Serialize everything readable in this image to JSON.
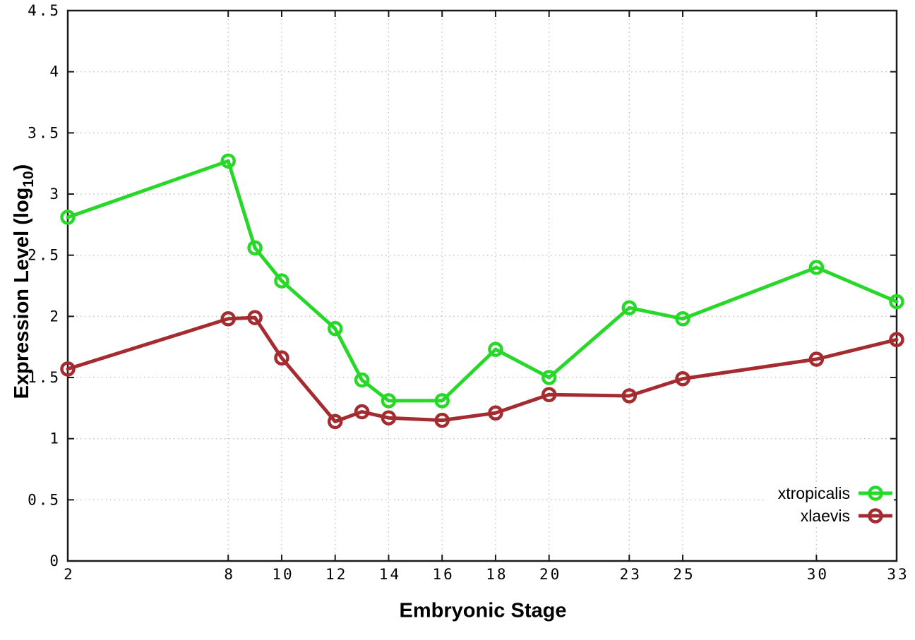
{
  "chart_data": {
    "type": "line",
    "title": "",
    "xlabel": "Embryonic Stage",
    "ylabel": "Expression Level (log10)",
    "ylabel_parts": {
      "main": "Expression Level (log",
      "sub": "10",
      "end": ")"
    },
    "x": [
      2,
      8,
      9,
      10,
      12,
      13,
      14,
      16,
      18,
      20,
      23,
      25,
      30,
      33
    ],
    "series": [
      {
        "name": "xtropicalis",
        "color": "#28d828",
        "values": [
          2.81,
          3.27,
          2.56,
          2.29,
          1.9,
          1.48,
          1.31,
          1.31,
          1.73,
          1.5,
          2.07,
          1.98,
          2.4,
          2.12
        ]
      },
      {
        "name": "xlaevis",
        "color": "#a42c30",
        "values": [
          1.57,
          1.98,
          1.99,
          1.66,
          1.14,
          1.22,
          1.17,
          1.15,
          1.21,
          1.36,
          1.35,
          1.49,
          1.65,
          1.81
        ]
      }
    ],
    "xlim": [
      2,
      33
    ],
    "ylim": [
      0,
      4.5
    ],
    "xticks": [
      2,
      8,
      10,
      12,
      14,
      16,
      18,
      20,
      23,
      25,
      30,
      33
    ],
    "xtick_labels": [
      "2",
      "8",
      "10",
      "12",
      "14",
      "16",
      "18",
      "20",
      "23",
      "25",
      "30",
      "33"
    ],
    "yticks": [
      0,
      0.5,
      1,
      1.5,
      2,
      2.5,
      3,
      3.5,
      4,
      4.5
    ],
    "ytick_labels": [
      "0",
      "0.5",
      "1",
      "1.5",
      "2",
      "2.5",
      "3",
      "3.5",
      "4",
      "4.5"
    ],
    "grid": true,
    "legend_position": "inside-bottom-right",
    "style": {
      "grid_color": "#c2c2c2",
      "border_color": "#1a1a1a",
      "tick_color": "#1a1a1a",
      "text_color": "#000000",
      "background": "#ffffff"
    }
  }
}
